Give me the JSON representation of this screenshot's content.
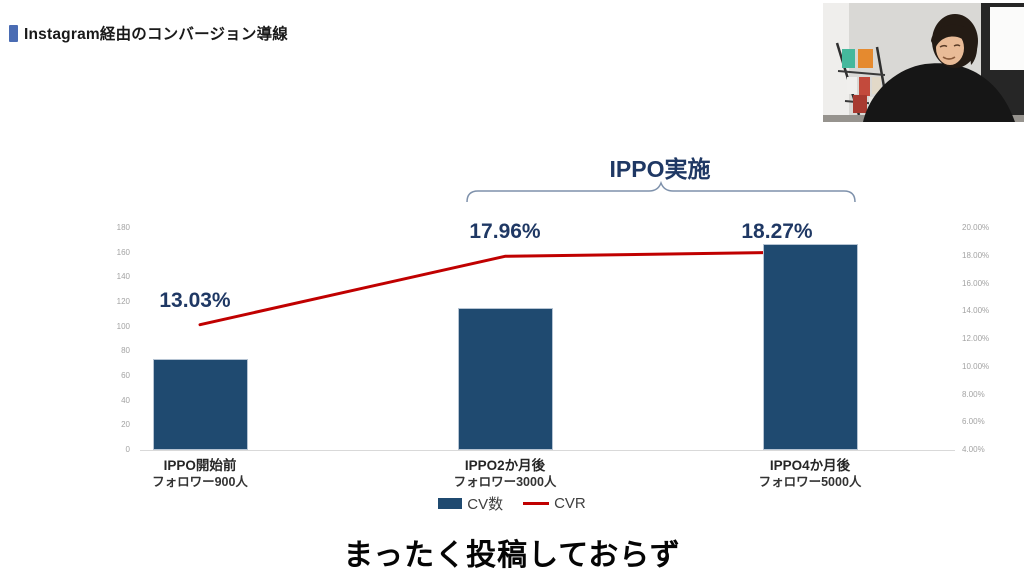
{
  "page": {
    "title": "Instagram経由のコンバージョン導線",
    "subtitle": "まったく投稿しておらず"
  },
  "chart_data": {
    "type": "bar",
    "combo": "bar+line",
    "categories": [
      "IPPO開始前",
      "IPPO2か月後",
      "IPPO4か月後"
    ],
    "category_sublabels": [
      "フォロワー900人",
      "フォロワー3000人",
      "フォロワー5000人"
    ],
    "series": [
      {
        "name": "CV数",
        "type": "bar",
        "axis": "left",
        "values": [
          74,
          115,
          167
        ],
        "color": "#1f4a70"
      },
      {
        "name": "CVR",
        "type": "line",
        "axis": "right",
        "values": [
          13.03,
          17.96,
          18.27
        ],
        "labels": [
          "13.03%",
          "17.96%",
          "18.27%"
        ],
        "color": "#c00000"
      }
    ],
    "left_axis": {
      "min": 0,
      "max": 180,
      "step": 20,
      "ticks": [
        "180",
        "160",
        "140",
        "120",
        "100",
        "80",
        "60",
        "40",
        "20",
        "0"
      ]
    },
    "right_axis": {
      "min": 4,
      "max": 20,
      "step": 2,
      "ticks": [
        "20.00%",
        "18.00%",
        "16.00%",
        "14.00%",
        "12.00%",
        "10.00%",
        "8.00%",
        "6.00%",
        "4.00%"
      ]
    },
    "annotation": {
      "label": "IPPO実施",
      "spans": [
        "IPPO2か月後",
        "IPPO4か月後"
      ]
    },
    "legend_position": "bottom",
    "grid": false,
    "colors": {
      "accent_bullet": "#4a6cb3",
      "data_label": "#1f3864",
      "bracket": "#7e91ab"
    }
  }
}
